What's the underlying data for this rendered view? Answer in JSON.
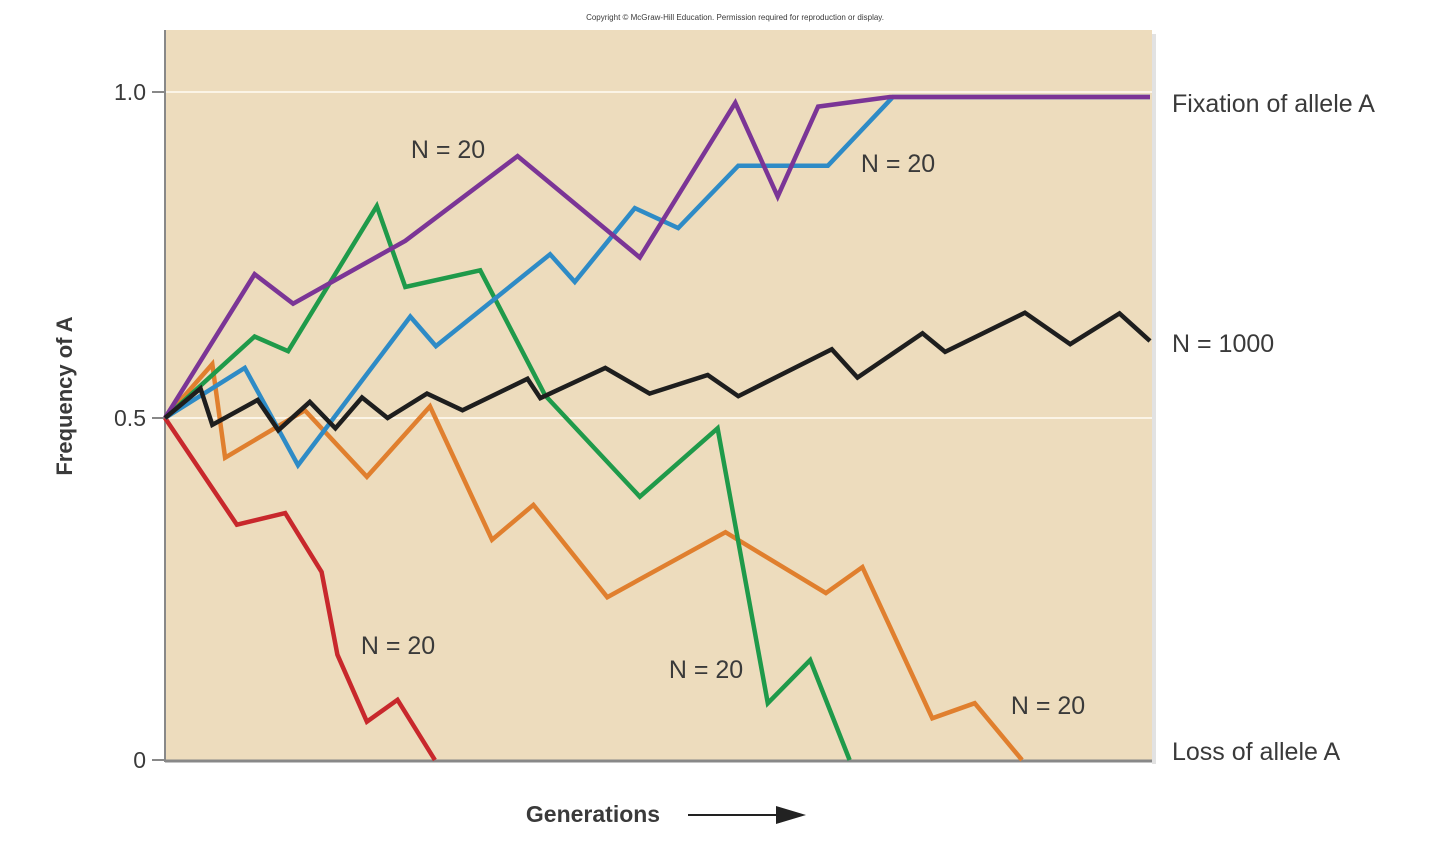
{
  "copyright": "Copyright © McGraw-Hill Education. Permission required for reproduction or display.",
  "chart_data": {
    "type": "line",
    "title": "",
    "xlabel": "Generations",
    "ylabel": "Frequency of A",
    "ylim": [
      0,
      1.0
    ],
    "xlim": [
      0,
      100
    ],
    "yticks": [
      {
        "value": 0,
        "label": "0"
      },
      {
        "value": 0.5,
        "label": "0.5"
      },
      {
        "value": 1.0,
        "label": "1.0"
      }
    ],
    "grid": "horizontal at 0.5 and 1.0",
    "background_color": "#eddcbd",
    "right_labels": {
      "fixation": "Fixation of allele A",
      "n1000": "N = 1000",
      "loss": "Loss of allele A"
    },
    "series": [
      {
        "name": "N = 20",
        "color": "#7b3596",
        "x": [
          0,
          9.1,
          13.0,
          24.4,
          35.8,
          48.2,
          57.9,
          62.2,
          66.3,
          73.6,
          100
        ],
        "y": [
          0.5,
          0.724,
          0.678,
          0.776,
          0.908,
          0.75,
          0.991,
          0.845,
          0.985,
          1.0,
          1.0
        ]
      },
      {
        "name": "N = 20",
        "color": "#2e8bc6",
        "x": [
          0,
          8.1,
          13.5,
          24.9,
          27.5,
          39.1,
          41.6,
          47.7,
          52.1,
          58.2,
          67.3,
          73.9,
          100
        ],
        "y": [
          0.5,
          0.578,
          0.431,
          0.658,
          0.612,
          0.755,
          0.712,
          0.827,
          0.796,
          0.893,
          0.893,
          1.0,
          1.0
        ]
      },
      {
        "name": "N = 1000",
        "color": "#1e1e1e",
        "x": [
          0,
          3.6,
          4.8,
          9.4,
          11.5,
          14.7,
          17.3,
          20.0,
          22.6,
          26.6,
          30.2,
          36.8,
          38.1,
          44.7,
          49.2,
          55.1,
          58.2,
          67.7,
          70.3,
          76.9,
          79.2,
          87.3,
          91.9,
          96.9,
          100
        ],
        "y": [
          0.5,
          0.546,
          0.49,
          0.528,
          0.482,
          0.525,
          0.485,
          0.532,
          0.5,
          0.538,
          0.512,
          0.561,
          0.531,
          0.578,
          0.538,
          0.567,
          0.534,
          0.607,
          0.563,
          0.632,
          0.603,
          0.664,
          0.615,
          0.663,
          0.62
        ]
      },
      {
        "name": "N = 20",
        "color": "#1f9a4a",
        "x": [
          0,
          9.1,
          12.5,
          21.5,
          24.4,
          32.0,
          38.6,
          48.2,
          56.1,
          61.2,
          65.5,
          69.5
        ],
        "y": [
          0.5,
          0.627,
          0.604,
          0.83,
          0.704,
          0.73,
          0.535,
          0.385,
          0.485,
          0.083,
          0.146,
          0
        ]
      },
      {
        "name": "N = 20",
        "color": "#e07f2e",
        "x": [
          0,
          4.8,
          6.1,
          14.2,
          20.5,
          26.9,
          33.2,
          37.4,
          44.9,
          56.9,
          67.1,
          70.8,
          77.9,
          82.2,
          87.0
        ],
        "y": [
          0.5,
          0.584,
          0.442,
          0.512,
          0.414,
          0.518,
          0.322,
          0.373,
          0.238,
          0.333,
          0.244,
          0.282,
          0.061,
          0.083,
          0
        ]
      },
      {
        "name": "N = 20",
        "color": "#c8282c",
        "x": [
          0,
          7.3,
          12.2,
          15.9,
          17.5,
          20.5,
          23.6,
          27.4
        ],
        "y": [
          0.5,
          0.344,
          0.361,
          0.275,
          0.154,
          0.056,
          0.088,
          0
        ]
      }
    ],
    "annotations": [
      {
        "text": "N = 20",
        "series": 0
      },
      {
        "text": "N = 20",
        "series": 1
      },
      {
        "text": "N = 20",
        "series": 3
      },
      {
        "text": "N = 20",
        "series": 4
      },
      {
        "text": "N = 20",
        "series": 5
      }
    ]
  }
}
